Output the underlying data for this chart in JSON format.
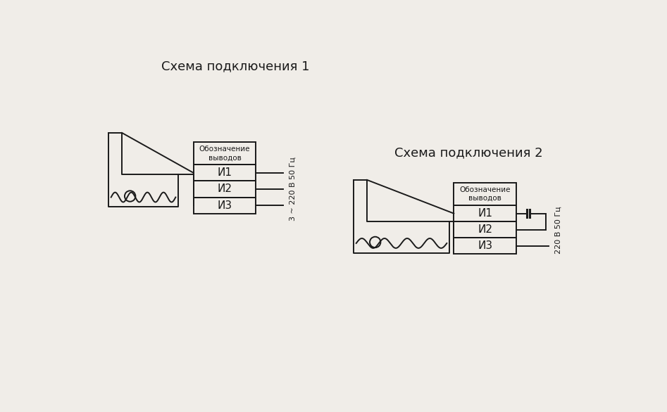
{
  "bg_color": "#f0ede8",
  "line_color": "#1a1a1a",
  "title1": "Схема подключения 1",
  "title2": "Схема подключения 2",
  "label_header": "Обозначение\nвыводов",
  "labels": [
    "И1",
    "И2",
    "И3"
  ],
  "voltage_label1": "3 ~ 220 В 50 Гц",
  "voltage_label2": "220 В 50 Гц",
  "lw": 1.4
}
